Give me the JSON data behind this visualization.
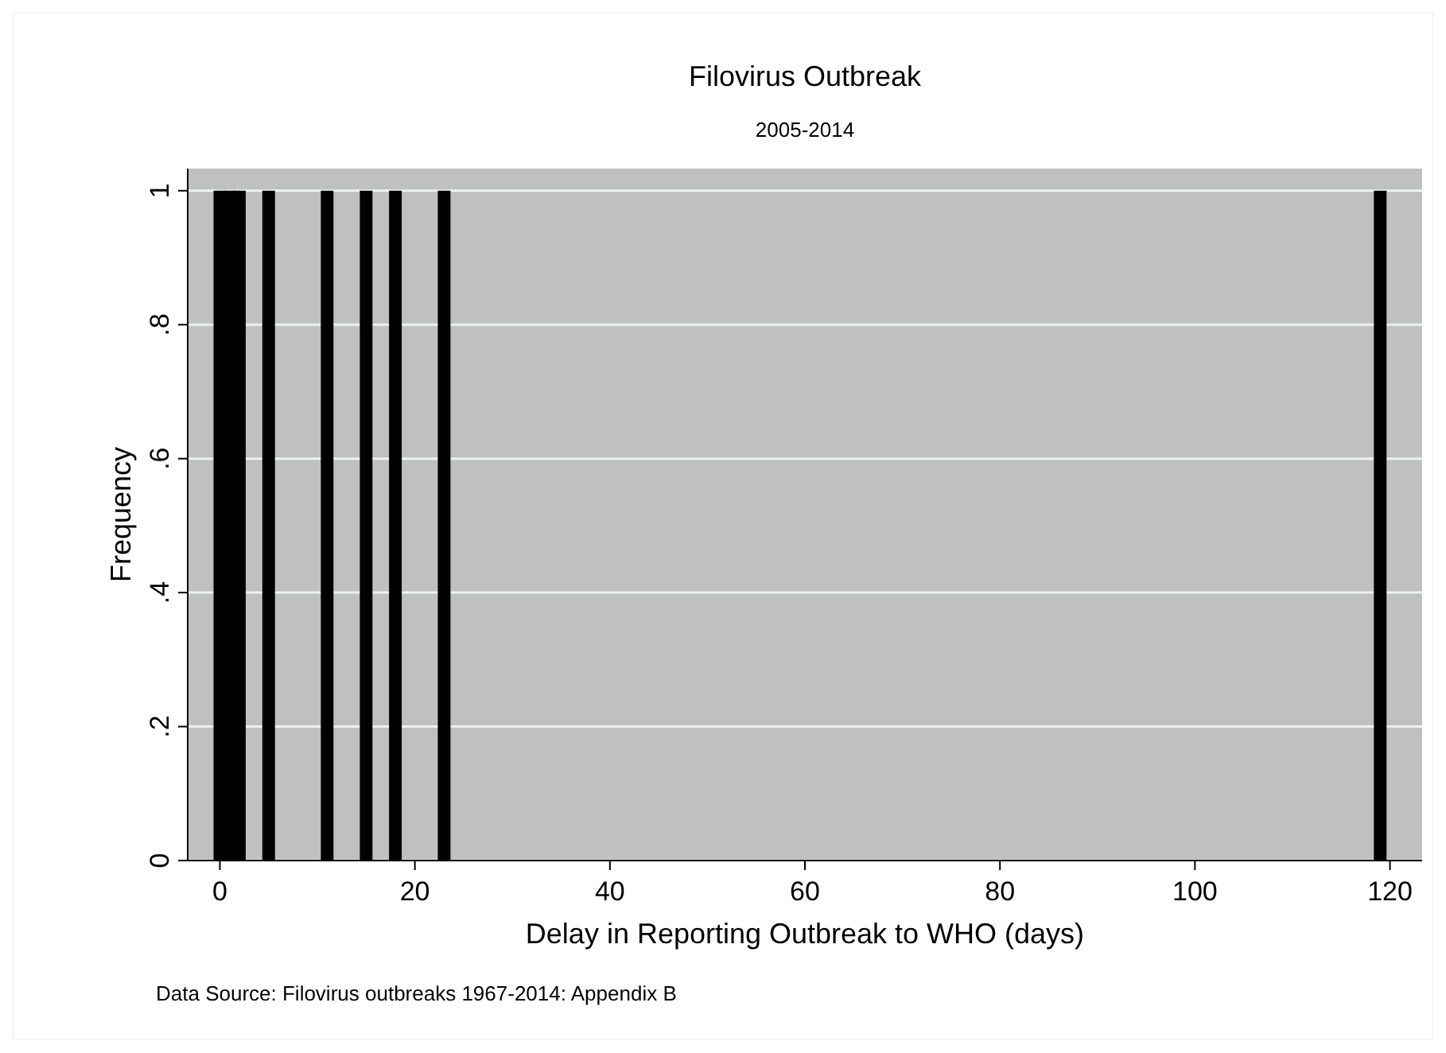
{
  "chart_data": {
    "type": "bar",
    "title": "Filovirus Outbreak",
    "subtitle": "2005-2014",
    "xlabel": "Delay in Reporting Outbreak to WHO (days)",
    "ylabel": "Frequency",
    "x": [
      0,
      1,
      2,
      5,
      11,
      15,
      18,
      23,
      119
    ],
    "values": [
      1,
      1,
      1,
      1,
      1,
      1,
      1,
      1,
      1
    ],
    "color": "#000000",
    "xlim": [
      -3.3,
      123.3
    ],
    "xticks": [
      0,
      20,
      40,
      60,
      80,
      100,
      120
    ],
    "ylim": [
      0,
      1.033
    ],
    "yticks": [
      0,
      {
        "value": 0.2,
        "label": ".2"
      },
      {
        "value": 0.4,
        "label": ".4"
      },
      {
        "value": 0.6,
        "label": ".6"
      },
      {
        "value": 0.8,
        "label": ".8"
      },
      1
    ],
    "grid": "y",
    "annotations": [
      "Data Source: Filovirus outbreaks 1967-2014: Appendix B"
    ]
  }
}
